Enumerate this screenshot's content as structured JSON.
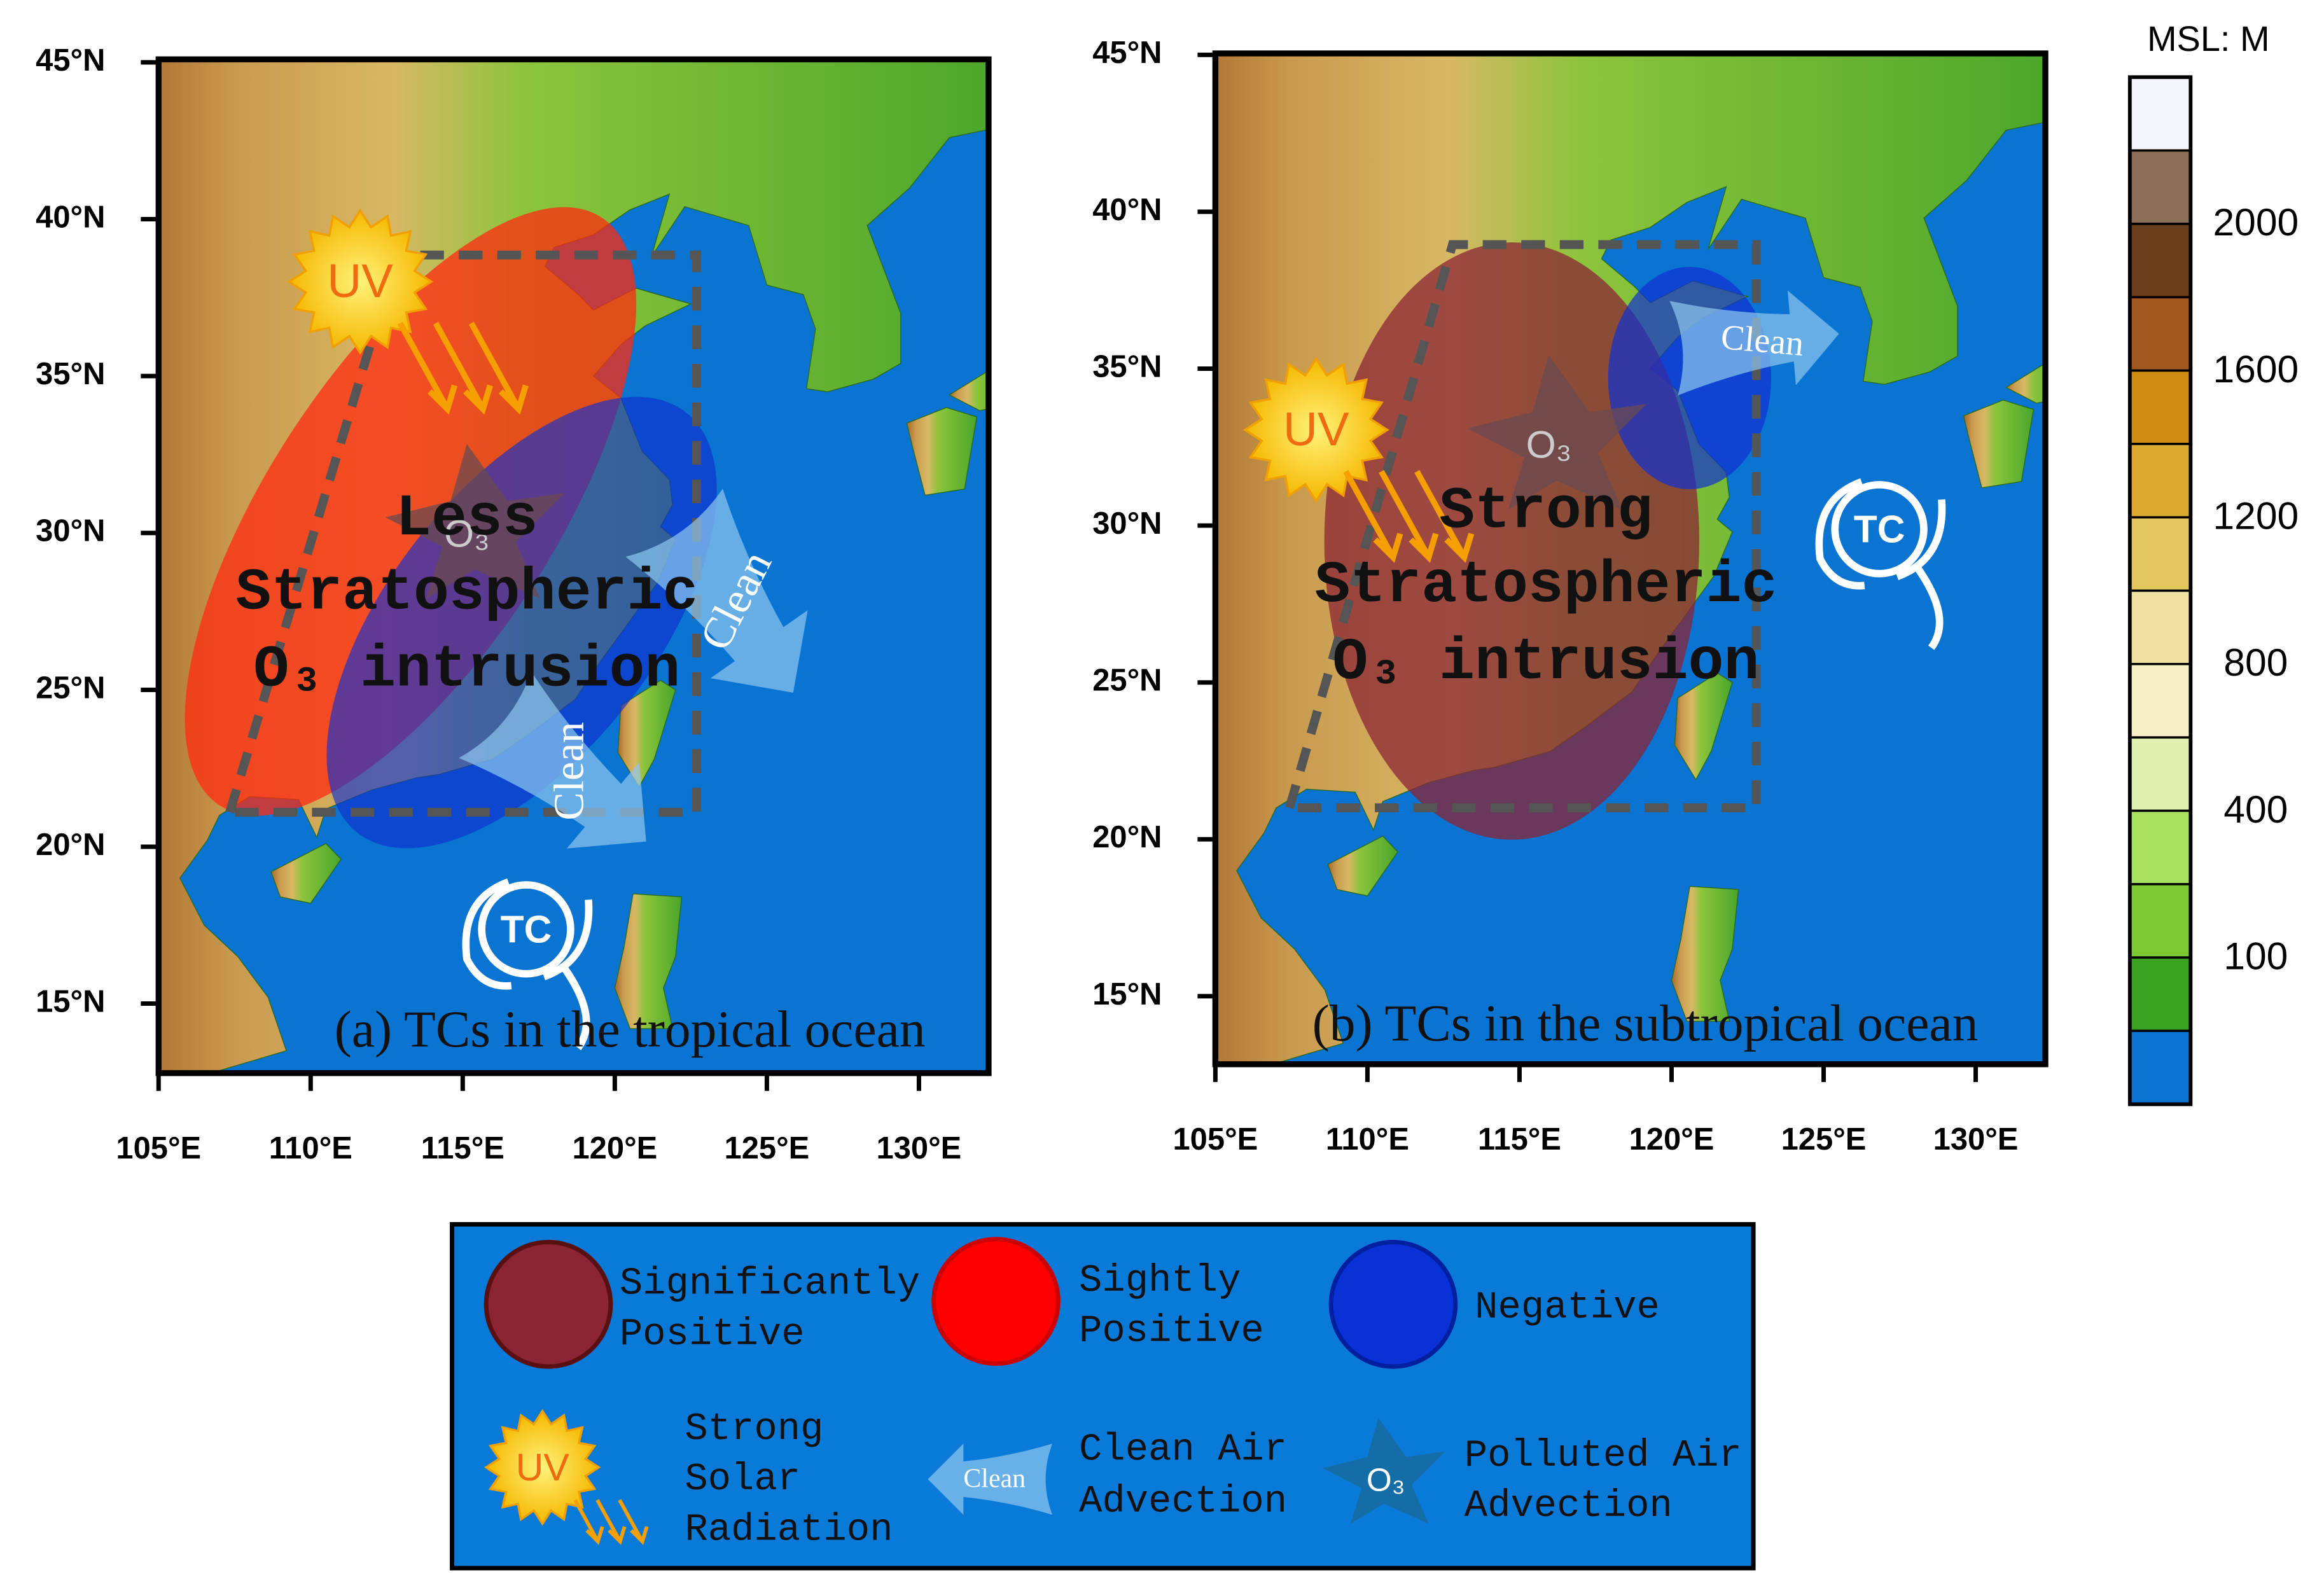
{
  "panels": [
    {
      "label": "(a) TCs in the tropical ocean",
      "annotation": [
        "Less",
        "Stratospheric",
        "O₃ intrusion"
      ],
      "uv": "UV",
      "o3": "O₃",
      "clean": [
        "Clean",
        "Clean"
      ],
      "tc": "TC"
    },
    {
      "label": "(b) TCs in the subtropical ocean",
      "annotation": [
        "Strong",
        "Stratospheric",
        "O₃ intrusion"
      ],
      "uv": "UV",
      "o3": "O₃",
      "clean": [
        "Clean"
      ],
      "tc": "TC"
    }
  ],
  "lat_ticks": [
    "45°N",
    "40°N",
    "35°N",
    "30°N",
    "25°N",
    "20°N",
    "15°N"
  ],
  "lon_ticks": [
    "105°E",
    "110°E",
    "115°E",
    "120°E",
    "125°E",
    "130°E"
  ],
  "colorbar": {
    "title": "MSL: M",
    "labels": [
      "2000",
      "1600",
      "1200",
      "800",
      "400",
      "100"
    ]
  },
  "legend": {
    "items": [
      {
        "label": [
          "Significantly",
          "Positive"
        ]
      },
      {
        "label": [
          "Sightly",
          "Positive"
        ]
      },
      {
        "label": [
          "Negative"
        ]
      },
      {
        "symbol": "UV",
        "label": [
          "Strong",
          "Solar",
          "Radiation"
        ]
      },
      {
        "symbol": "Clean",
        "label": [
          "Clean Air",
          "Advection"
        ]
      },
      {
        "symbol": "O₃",
        "label": [
          "Polluted Air",
          "Advection"
        ]
      }
    ]
  }
}
